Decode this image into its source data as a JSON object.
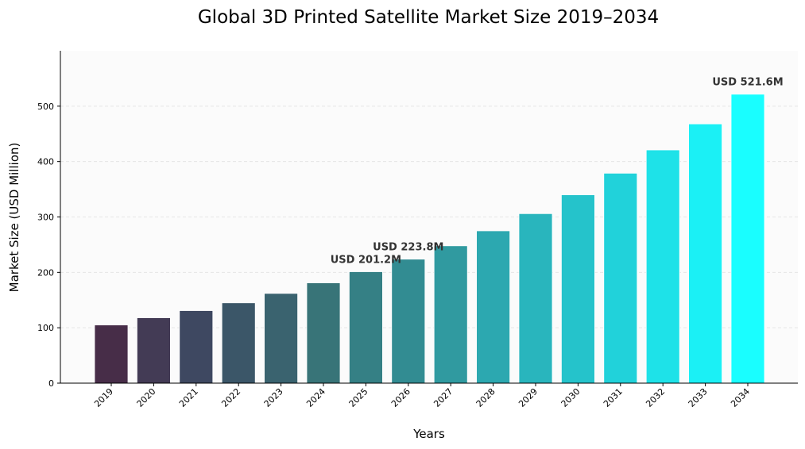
{
  "chart_data": {
    "type": "bar",
    "title": "Global 3D Printed Satellite Market Size 2019–2034",
    "xlabel": "Years",
    "ylabel": "Market Size (USD Million)",
    "ylim": [
      0,
      600
    ],
    "yticks": [
      0,
      100,
      200,
      300,
      400,
      500
    ],
    "grid": true,
    "categories": [
      "2019",
      "2020",
      "2021",
      "2022",
      "2023",
      "2024",
      "2025",
      "2026",
      "2027",
      "2028",
      "2029",
      "2030",
      "2031",
      "2032",
      "2033",
      "2034"
    ],
    "values": [
      105,
      118,
      131,
      145,
      162,
      181,
      201.2,
      223.8,
      248,
      275,
      306,
      340,
      379,
      421,
      468,
      521.6
    ],
    "bar_colors": [
      "#472d48",
      "#433b55",
      "#3e4861",
      "#3b5668",
      "#3a636f",
      "#387478",
      "#358085",
      "#328c92",
      "#309aa0",
      "#2ca8b0",
      "#29b5bd",
      "#25c3cb",
      "#21d2da",
      "#1ee2e8",
      "#1bf0f5",
      "#19feff"
    ],
    "annotations": [
      {
        "index": 6,
        "text": "USD 201.2M"
      },
      {
        "index": 7,
        "text": "USD 223.8M"
      },
      {
        "index": 15,
        "text": "USD 521.6M"
      }
    ],
    "background": "#fbfbfb",
    "grid_color": "#e6e6e6"
  }
}
